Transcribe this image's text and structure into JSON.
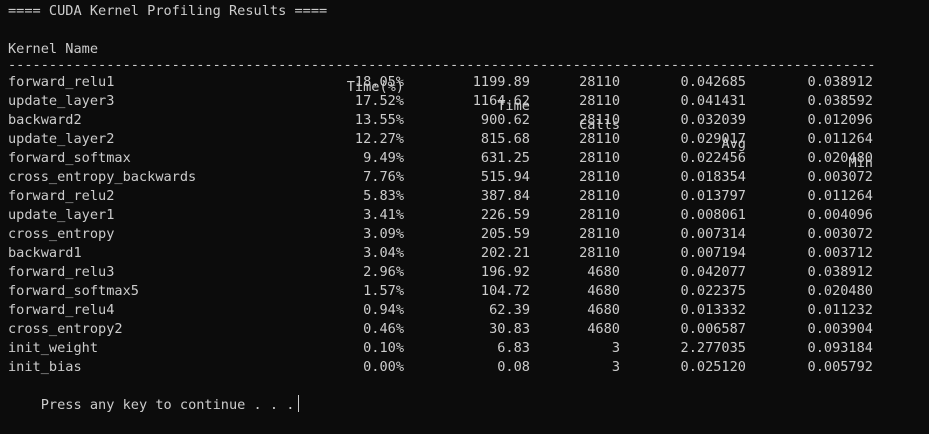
{
  "title": "==== CUDA Kernel Profiling Results ====",
  "headers": {
    "name": "Kernel Name",
    "pct": "Time(%)",
    "time": "Time",
    "calls": "Calls",
    "avg": "Avg",
    "min": "Min"
  },
  "separator": "----------------------------------------------------------------------------------------------------------------------------------------------",
  "rows": [
    {
      "name": "forward_relu1",
      "pct": "18.05%",
      "time": "1199.89",
      "calls": "28110",
      "avg": "0.042685",
      "min": "0.038912"
    },
    {
      "name": "update_layer3",
      "pct": "17.52%",
      "time": "1164.62",
      "calls": "28110",
      "avg": "0.041431",
      "min": "0.038592"
    },
    {
      "name": "backward2",
      "pct": "13.55%",
      "time": "900.62",
      "calls": "28110",
      "avg": "0.032039",
      "min": "0.012096"
    },
    {
      "name": "update_layer2",
      "pct": "12.27%",
      "time": "815.68",
      "calls": "28110",
      "avg": "0.029017",
      "min": "0.011264"
    },
    {
      "name": "forward_softmax",
      "pct": "9.49%",
      "time": "631.25",
      "calls": "28110",
      "avg": "0.022456",
      "min": "0.020480"
    },
    {
      "name": "cross_entropy_backwards",
      "pct": "7.76%",
      "time": "515.94",
      "calls": "28110",
      "avg": "0.018354",
      "min": "0.003072"
    },
    {
      "name": "forward_relu2",
      "pct": "5.83%",
      "time": "387.84",
      "calls": "28110",
      "avg": "0.013797",
      "min": "0.011264"
    },
    {
      "name": "update_layer1",
      "pct": "3.41%",
      "time": "226.59",
      "calls": "28110",
      "avg": "0.008061",
      "min": "0.004096"
    },
    {
      "name": "cross_entropy",
      "pct": "3.09%",
      "time": "205.59",
      "calls": "28110",
      "avg": "0.007314",
      "min": "0.003072"
    },
    {
      "name": "backward1",
      "pct": "3.04%",
      "time": "202.21",
      "calls": "28110",
      "avg": "0.007194",
      "min": "0.003712"
    },
    {
      "name": "forward_relu3",
      "pct": "2.96%",
      "time": "196.92",
      "calls": "4680",
      "avg": "0.042077",
      "min": "0.038912"
    },
    {
      "name": "forward_softmax5",
      "pct": "1.57%",
      "time": "104.72",
      "calls": "4680",
      "avg": "0.022375",
      "min": "0.020480"
    },
    {
      "name": "forward_relu4",
      "pct": "0.94%",
      "time": "62.39",
      "calls": "4680",
      "avg": "0.013332",
      "min": "0.011232"
    },
    {
      "name": "cross_entropy2",
      "pct": "0.46%",
      "time": "30.83",
      "calls": "4680",
      "avg": "0.006587",
      "min": "0.003904"
    },
    {
      "name": "init_weight",
      "pct": "0.10%",
      "time": "6.83",
      "calls": "3",
      "avg": "2.277035",
      "min": "0.093184"
    },
    {
      "name": "init_bias",
      "pct": "0.00%",
      "time": "0.08",
      "calls": "3",
      "avg": "0.025120",
      "min": "0.005792"
    }
  ],
  "prompt": "Press any key to continue . . .",
  "colors": {
    "background": "#0c0c0c",
    "foreground": "#cccccc"
  }
}
